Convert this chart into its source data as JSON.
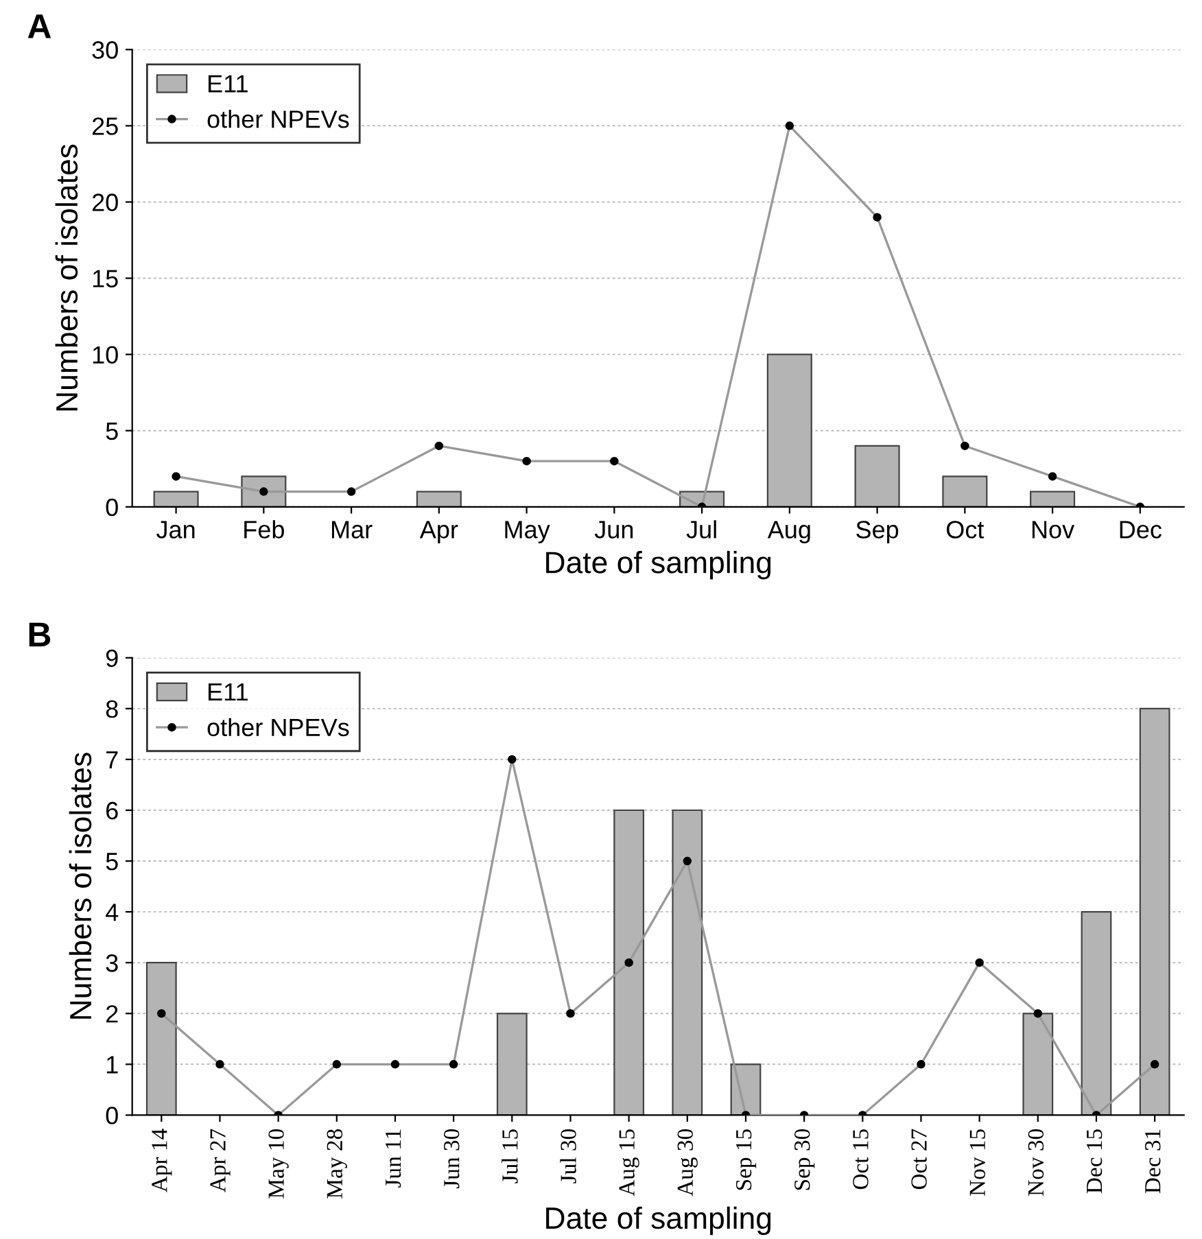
{
  "chart_data": [
    {
      "type": "bar",
      "title": "A",
      "xlabel": "Date of sampling",
      "ylabel": "Numbers of isolates",
      "categories": [
        "Jan",
        "Feb",
        "Mar",
        "Apr",
        "May",
        "Jun",
        "Jul",
        "Aug",
        "Sep",
        "Oct",
        "Nov",
        "Dec"
      ],
      "series": [
        {
          "name": "E11",
          "color": "#b4b4b4",
          "values": [
            1,
            2,
            0,
            1,
            0,
            0,
            1,
            10,
            4,
            2,
            1,
            0
          ]
        },
        {
          "name": "other NPEVs",
          "type": "line",
          "color": "#999999",
          "values": [
            2,
            1,
            1,
            4,
            3,
            3,
            0,
            25,
            19,
            4,
            2,
            0
          ]
        }
      ],
      "ylim": [
        0,
        30
      ],
      "yticks": [
        0,
        5,
        10,
        15,
        20,
        25,
        30
      ],
      "grid": "y",
      "legend": "top left",
      "marker": "circle",
      "line_style": "solid"
    },
    {
      "type": "bar",
      "title": "B",
      "xlabel": "Date of sampling",
      "ylabel": "Numbers of isolates",
      "categories": [
        "Apr 14",
        "Apr 27",
        "May 10",
        "May 28",
        "Jun 11",
        "Jun 30",
        "Jul 15",
        "Jul 30",
        "Aug 15",
        "Aug 30",
        "Sep 15",
        "Sep 30",
        "Oct 15",
        "Oct 27",
        "Nov 15",
        "Nov 30",
        "Dec 15",
        "Dec 31"
      ],
      "series": [
        {
          "name": "E11",
          "color": "#b4b4b4",
          "values": [
            3,
            0,
            0,
            0,
            0,
            0,
            2,
            0,
            6,
            6,
            1,
            0,
            0,
            0,
            0,
            2,
            4,
            8
          ]
        },
        {
          "name": "other NPEVs",
          "type": "line",
          "color": "#999999",
          "values": [
            2,
            1,
            0,
            1,
            1,
            1,
            7,
            2,
            3,
            5,
            0,
            0,
            0,
            1,
            3,
            2,
            0,
            1
          ]
        }
      ],
      "ylim": [
        0,
        9
      ],
      "yticks": [
        0,
        1,
        2,
        3,
        4,
        5,
        6,
        7,
        8,
        9
      ],
      "grid": "y",
      "legend": "top left",
      "marker": "circle",
      "line_style": "solid"
    }
  ]
}
